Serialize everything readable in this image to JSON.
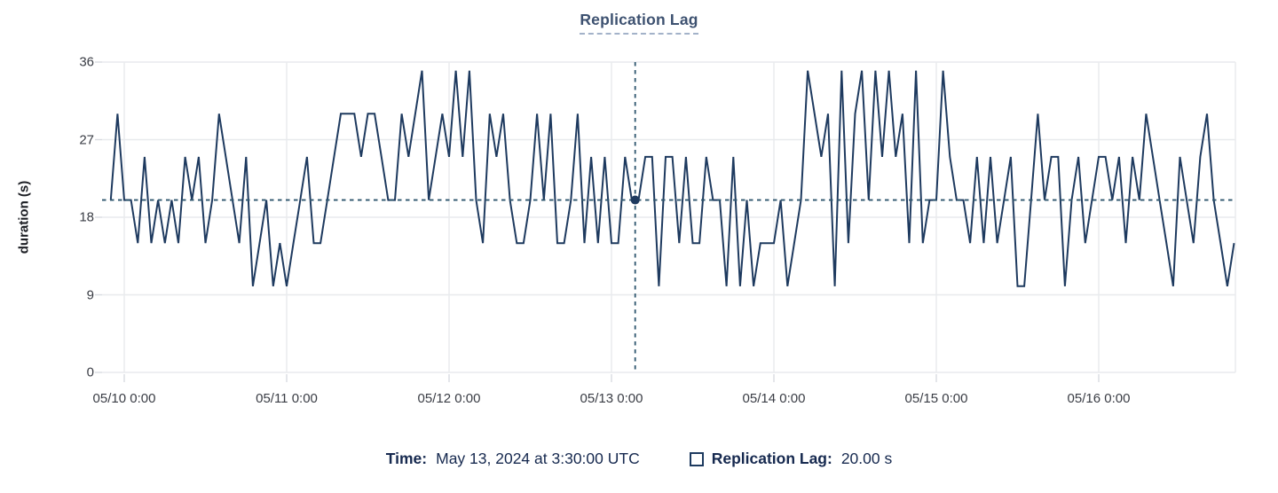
{
  "chart": {
    "title": "Replication Lag",
    "ylabel": "duration (s)"
  },
  "legend": {
    "time_label": "Time:",
    "time_value": "May 13, 2024 at 3:30:00 UTC",
    "series_label": "Replication Lag:",
    "series_value": "20.00 s"
  },
  "colors": {
    "series": "#1e3a5f",
    "crosshair": "#2e566e",
    "crosshair_dot": "#1e3a5f",
    "grid": "#e8eaed",
    "tick_mark": "#d8dbe0",
    "title": "#3d5170",
    "legend_text": "#16294f",
    "axis_text": "#3a3d45"
  },
  "chart_data": {
    "type": "line",
    "title": "Replication Lag",
    "xlabel": "",
    "ylabel": "duration (s)",
    "ylim": [
      0,
      36
    ],
    "y_ticks": [
      0,
      9,
      18,
      27,
      36
    ],
    "grid": true,
    "legend_position": "bottom",
    "x_unit": "hours relative to 05/10 0:00 UTC",
    "x_ticks": [
      {
        "hour": 0,
        "label": "05/10 0:00"
      },
      {
        "hour": 24,
        "label": "05/11 0:00"
      },
      {
        "hour": 48,
        "label": "05/12 0:00"
      },
      {
        "hour": 72,
        "label": "05/13 0:00"
      },
      {
        "hour": 96,
        "label": "05/14 0:00"
      },
      {
        "hour": 120,
        "label": "05/15 0:00"
      },
      {
        "hour": 144,
        "label": "05/16 0:00"
      }
    ],
    "crosshair": {
      "x_hours": 75.5,
      "value": 20,
      "time_label": "May 13, 2024 at 3:30:00 UTC",
      "value_label": "20.00 s"
    },
    "series": [
      {
        "name": "Replication Lag",
        "start_hour": -2,
        "interval_hours": 1,
        "values": [
          20,
          30,
          20,
          20,
          15,
          25,
          15,
          20,
          15,
          20,
          15,
          25,
          20,
          25,
          15,
          20,
          30,
          25,
          20,
          15,
          25,
          10,
          15,
          20,
          10,
          15,
          10,
          15,
          20,
          25,
          15,
          15,
          20,
          25,
          30,
          30,
          30,
          25,
          30,
          30,
          25,
          20,
          20,
          30,
          25,
          30,
          35,
          20,
          25,
          30,
          25,
          35,
          25,
          35,
          20,
          15,
          30,
          25,
          30,
          20,
          15,
          15,
          20,
          30,
          20,
          30,
          15,
          15,
          20,
          30,
          15,
          25,
          15,
          25,
          15,
          15,
          25,
          20,
          20,
          25,
          25,
          10,
          25,
          25,
          15,
          25,
          15,
          15,
          25,
          20,
          20,
          10,
          25,
          10,
          20,
          10,
          15,
          15,
          15,
          20,
          10,
          15,
          20,
          35,
          30,
          25,
          30,
          10,
          35,
          15,
          30,
          35,
          20,
          35,
          25,
          35,
          25,
          30,
          15,
          35,
          15,
          20,
          20,
          35,
          25,
          20,
          20,
          15,
          25,
          15,
          25,
          15,
          20,
          25,
          10,
          10,
          20,
          30,
          20,
          25,
          25,
          10,
          20,
          25,
          15,
          20,
          25,
          25,
          20,
          25,
          15,
          25,
          20,
          30,
          25,
          20,
          15,
          10,
          25,
          20,
          15,
          25,
          30,
          20,
          15,
          10,
          15
        ]
      }
    ]
  }
}
